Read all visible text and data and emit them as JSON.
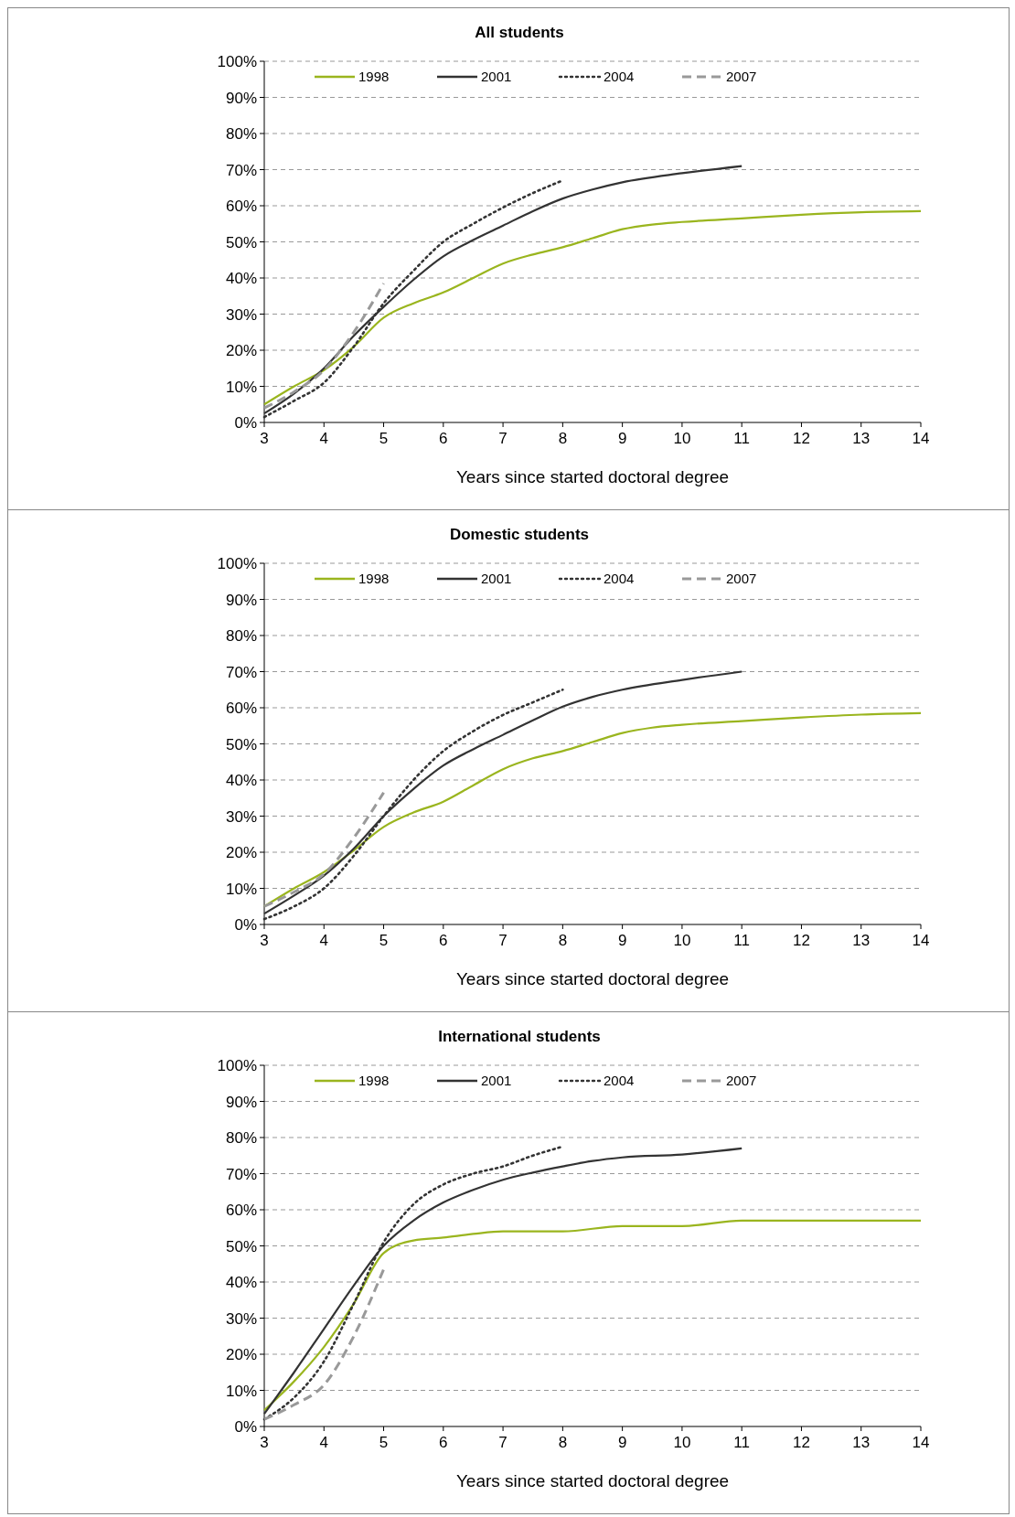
{
  "chart_data": [
    {
      "type": "line",
      "title": "All students",
      "xlabel": "Years since started doctoral degree",
      "xlim": [
        3,
        14
      ],
      "xticks": [
        3,
        4,
        5,
        6,
        7,
        8,
        9,
        10,
        11,
        12,
        13,
        14
      ],
      "ylim": [
        0,
        100
      ],
      "yticks": [
        {
          "value": 0,
          "label": "0%"
        },
        {
          "value": 10,
          "label": "10%"
        },
        {
          "value": 20,
          "label": "20%"
        },
        {
          "value": 30,
          "label": "30%"
        },
        {
          "value": 40,
          "label": "40%"
        },
        {
          "value": 50,
          "label": "50%"
        },
        {
          "value": 60,
          "label": "60%"
        },
        {
          "value": 70,
          "label": "70%"
        },
        {
          "value": 80,
          "label": "80%"
        },
        {
          "value": 90,
          "label": "90%"
        },
        {
          "value": 100,
          "label": "100%"
        }
      ],
      "grid": "y",
      "legend": "top",
      "series": [
        {
          "name": "1998",
          "color": "#9ab51e",
          "line_style": "solid",
          "x": [
            3,
            3.5,
            4,
            4.5,
            5,
            5.5,
            6,
            6.5,
            7,
            7.5,
            8,
            8.5,
            9,
            9.5,
            10,
            11,
            12,
            13,
            14
          ],
          "values": [
            5,
            10,
            14.5,
            21,
            29,
            33,
            36,
            40,
            44,
            46.5,
            48.5,
            51,
            53.5,
            54.8,
            55.5,
            56.5,
            57.5,
            58.2,
            58.5
          ]
        },
        {
          "name": "2001",
          "color": "#333333",
          "line_style": "solid",
          "x": [
            3,
            3.5,
            4,
            4.5,
            5,
            5.5,
            6,
            6.5,
            7,
            7.5,
            8,
            8.5,
            9,
            10,
            11
          ],
          "values": [
            2.5,
            8,
            15,
            24,
            32,
            39.5,
            46,
            50.5,
            54.5,
            58.5,
            62,
            64.5,
            66.5,
            69,
            71
          ]
        },
        {
          "name": "2004",
          "color": "#333333",
          "line_style": "dotted",
          "x": [
            3,
            3.5,
            4,
            4.5,
            5,
            5.5,
            6,
            6.5,
            7,
            7.5,
            8
          ],
          "values": [
            1.5,
            6,
            11,
            21,
            33,
            42,
            50,
            55,
            59.5,
            63.5,
            67
          ]
        },
        {
          "name": "2007",
          "color": "#999999",
          "line_style": "dashed",
          "x": [
            3,
            3.5,
            4,
            4.5,
            5
          ],
          "values": [
            4,
            8.5,
            14.5,
            25,
            38.5
          ]
        }
      ]
    },
    {
      "type": "line",
      "title": "Domestic students",
      "xlabel": "Years since started doctoral degree",
      "xlim": [
        3,
        14
      ],
      "xticks": [
        3,
        4,
        5,
        6,
        7,
        8,
        9,
        10,
        11,
        12,
        13,
        14
      ],
      "ylim": [
        0,
        100
      ],
      "yticks": [
        {
          "value": 0,
          "label": "0%"
        },
        {
          "value": 10,
          "label": "10%"
        },
        {
          "value": 20,
          "label": "20%"
        },
        {
          "value": 30,
          "label": "30%"
        },
        {
          "value": 40,
          "label": "40%"
        },
        {
          "value": 50,
          "label": "50%"
        },
        {
          "value": 60,
          "label": "60%"
        },
        {
          "value": 70,
          "label": "70%"
        },
        {
          "value": 80,
          "label": "80%"
        },
        {
          "value": 90,
          "label": "90%"
        },
        {
          "value": 100,
          "label": "100%"
        }
      ],
      "grid": "y",
      "legend": "top",
      "series": [
        {
          "name": "1998",
          "color": "#9ab51e",
          "line_style": "solid",
          "x": [
            3,
            3.5,
            4,
            4.5,
            5,
            5.5,
            6,
            6.5,
            7,
            7.5,
            8,
            8.5,
            9,
            9.5,
            10,
            11,
            12,
            13,
            14
          ],
          "values": [
            5,
            10,
            14.5,
            20.5,
            27,
            31,
            34,
            38.5,
            43,
            46,
            48,
            50.5,
            53,
            54.5,
            55.3,
            56.3,
            57.3,
            58.1,
            58.5
          ]
        },
        {
          "name": "2001",
          "color": "#333333",
          "line_style": "solid",
          "x": [
            3,
            3.5,
            4,
            4.5,
            5,
            5.5,
            6,
            6.5,
            7,
            7.5,
            8,
            8.5,
            9,
            10,
            11
          ],
          "values": [
            3,
            8,
            13.5,
            21,
            30,
            37.5,
            44,
            48.5,
            52.5,
            56.5,
            60.3,
            63,
            65,
            67.7,
            70
          ]
        },
        {
          "name": "2004",
          "color": "#333333",
          "line_style": "dotted",
          "x": [
            3,
            3.5,
            4,
            4.5,
            5,
            5.5,
            6,
            6.5,
            7,
            7.5,
            8
          ],
          "values": [
            1.5,
            5,
            10,
            19,
            30,
            40,
            48,
            53.5,
            58,
            61.5,
            65
          ]
        },
        {
          "name": "2007",
          "color": "#999999",
          "line_style": "dashed",
          "x": [
            3,
            3.5,
            4,
            4.5,
            5
          ],
          "values": [
            5,
            9,
            14,
            24,
            36.5
          ]
        }
      ]
    },
    {
      "type": "line",
      "title": "International students",
      "xlabel": "Years since started doctoral degree",
      "xlim": [
        3,
        14
      ],
      "xticks": [
        3,
        4,
        5,
        6,
        7,
        8,
        9,
        10,
        11,
        12,
        13,
        14
      ],
      "ylim": [
        0,
        100
      ],
      "yticks": [
        {
          "value": 0,
          "label": "0%"
        },
        {
          "value": 10,
          "label": "10%"
        },
        {
          "value": 20,
          "label": "20%"
        },
        {
          "value": 30,
          "label": "30%"
        },
        {
          "value": 40,
          "label": "40%"
        },
        {
          "value": 50,
          "label": "50%"
        },
        {
          "value": 60,
          "label": "60%"
        },
        {
          "value": 70,
          "label": "70%"
        },
        {
          "value": 80,
          "label": "80%"
        },
        {
          "value": 90,
          "label": "90%"
        },
        {
          "value": 100,
          "label": "100%"
        }
      ],
      "grid": "y",
      "legend": "top",
      "series": [
        {
          "name": "1998",
          "color": "#9ab51e",
          "line_style": "solid",
          "x": [
            3,
            3.5,
            4,
            4.5,
            5,
            5.5,
            6,
            6.5,
            7,
            8,
            9,
            10,
            11,
            12,
            13,
            14
          ],
          "values": [
            4.5,
            12.5,
            22,
            34,
            48,
            51.5,
            52.3,
            53.3,
            54,
            54,
            55.5,
            55.5,
            57,
            57,
            57,
            57
          ]
        },
        {
          "name": "2001",
          "color": "#333333",
          "line_style": "solid",
          "x": [
            3,
            3.5,
            4,
            4.5,
            5,
            5.5,
            6,
            6.5,
            7,
            7.5,
            8,
            8.5,
            9,
            10,
            11
          ],
          "values": [
            3.5,
            15,
            27,
            39,
            50,
            57,
            62,
            65.5,
            68.3,
            70.3,
            72,
            73.5,
            74.5,
            75.3,
            77
          ]
        },
        {
          "name": "2004",
          "color": "#333333",
          "line_style": "dotted",
          "x": [
            3,
            3.5,
            4,
            4.5,
            5,
            5.5,
            6,
            6.5,
            7,
            7.5,
            8
          ],
          "values": [
            2,
            8,
            18,
            34,
            51,
            61.5,
            67,
            70,
            72,
            75,
            77.5
          ]
        },
        {
          "name": "2007",
          "color": "#999999",
          "line_style": "dashed",
          "x": [
            3,
            3.5,
            4,
            4.5,
            5
          ],
          "values": [
            2,
            6,
            11.5,
            25,
            43.5
          ]
        }
      ]
    }
  ]
}
